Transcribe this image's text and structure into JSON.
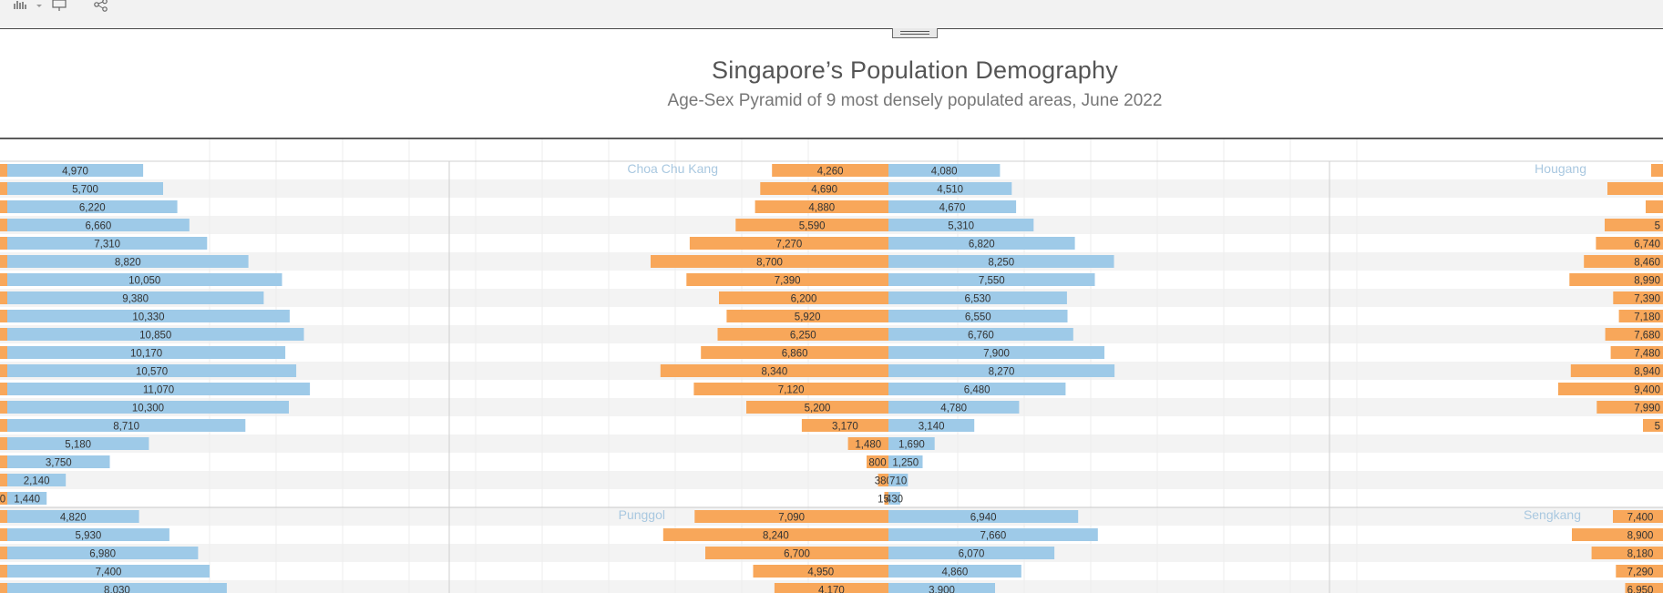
{
  "header": {
    "title": "Singapore’s Population Demography",
    "subtitle": "Age-Sex Pyramid of 9 most densely populated areas, June 2022"
  },
  "toolbar": {
    "icons": [
      "bar-chart-icon",
      "dropdown-caret-icon",
      "present-icon",
      "share-icon"
    ]
  },
  "colors": {
    "male": "#9ecae8",
    "female": "#f8a75a",
    "area_label": "#a9c8e0",
    "stripe": "#f3f3f3"
  },
  "chart_data": {
    "type": "bar",
    "chart_subtype": "age-sex-pyramid",
    "panels": [
      {
        "area": "",
        "male": [
          4970,
          5700,
          6220,
          6660,
          7310,
          8820,
          10050,
          9380,
          10330,
          10850,
          10170,
          10570,
          11070,
          10300,
          8710,
          5180,
          3750,
          2140,
          1440
        ],
        "male_labels": [
          "4,970",
          "5,700",
          "6,220",
          "6,660",
          "7,310",
          "8,820",
          "10,050",
          "9,380",
          "10,330",
          "10,850",
          "10,170",
          "10,570",
          "11,070",
          "10,300",
          "8,710",
          "5,180",
          "3,750",
          "2,140",
          "1,440"
        ],
        "female_labels": [
          "",
          "",
          "",
          "",
          "",
          "",
          "",
          "",
          "",
          "",
          "",
          "",
          "",
          "",
          "",
          "",
          "",
          "",
          "0"
        ]
      },
      {
        "area": "Choa Chu Kang",
        "female": [
          4260,
          4690,
          4880,
          5590,
          7270,
          8700,
          7390,
          6200,
          5920,
          6250,
          6860,
          8340,
          7120,
          5200,
          3170,
          1480,
          800,
          380,
          150
        ],
        "female_labels": [
          "4,260",
          "4,690",
          "4,880",
          "5,590",
          "7,270",
          "8,700",
          "7,390",
          "6,200",
          "5,920",
          "6,250",
          "6,860",
          "8,340",
          "7,120",
          "5,200",
          "3,170",
          "1,480",
          "800",
          "380",
          "150"
        ],
        "male": [
          4080,
          4510,
          4670,
          5310,
          6820,
          8250,
          7550,
          6530,
          6550,
          6760,
          7900,
          8270,
          6480,
          4780,
          3140,
          1690,
          1250,
          710,
          430
        ],
        "male_labels": [
          "4,080",
          "4,510",
          "4,670",
          "5,310",
          "6,820",
          "8,250",
          "7,550",
          "6,530",
          "6,550",
          "6,760",
          "7,900",
          "8,270",
          "6,480",
          "4,780",
          "3,140",
          "1,690",
          "1,250",
          "710",
          "430"
        ]
      },
      {
        "area": "Hougang",
        "female_labels": [
          "",
          "",
          "",
          "5",
          "6,740",
          "8,460",
          "8,990",
          "7,390",
          "7,180",
          "7,680",
          "7,480",
          "8,940",
          "9,400",
          "7,990",
          "5",
          "",
          "",
          "",
          ""
        ]
      },
      {
        "area": "",
        "male_labels": [
          "4,820",
          "5,930",
          "6,980",
          "7,400",
          "8,030"
        ]
      },
      {
        "area": "Punggol",
        "female": [
          7090,
          8240,
          6700,
          4950,
          4170
        ],
        "female_labels": [
          "7,090",
          "8,240",
          "6,700",
          "4,950",
          "4,170"
        ],
        "male": [
          6940,
          7660,
          6070,
          4860,
          3900
        ],
        "male_labels": [
          "6,940",
          "7,660",
          "6,070",
          "4,860",
          "3,900"
        ]
      },
      {
        "area": "Sengkang",
        "female_labels": [
          "7,400",
          "8,900",
          "8,180",
          "7,290",
          "6,950"
        ]
      }
    ]
  }
}
